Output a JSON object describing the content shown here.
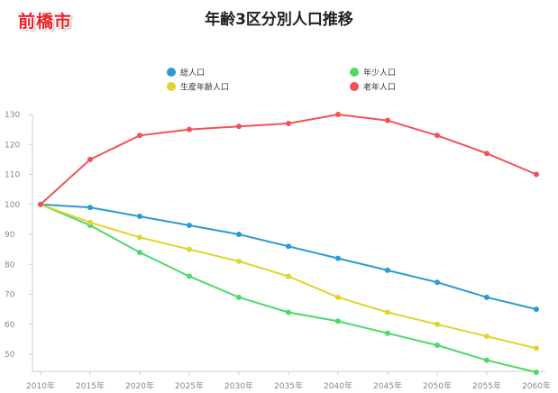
{
  "badge": "前橋市",
  "chart_data": {
    "type": "line",
    "title": "年齢3区分別人口推移",
    "xlabel": "",
    "ylabel": "",
    "categories": [
      "2010年",
      "2015年",
      "2020年",
      "2025年",
      "2030年",
      "2035年",
      "2040年",
      "2045年",
      "2050年",
      "2055年",
      "2060年"
    ],
    "ylim": [
      45,
      130
    ],
    "yticks": [
      50,
      60,
      70,
      80,
      90,
      100,
      110,
      120,
      130
    ],
    "grid": false,
    "legend_position": "top",
    "series": [
      {
        "name": "総人口",
        "color": "#2b9bd1",
        "values": [
          100,
          99,
          96,
          93,
          90,
          86,
          82,
          78,
          74,
          69,
          65
        ]
      },
      {
        "name": "年少人口",
        "color": "#4cd96a",
        "values": [
          100,
          93,
          84,
          76,
          69,
          64,
          61,
          57,
          53,
          48,
          44
        ]
      },
      {
        "name": "生産年齢人口",
        "color": "#e2d42c",
        "values": [
          100,
          94,
          89,
          85,
          81,
          76,
          69,
          64,
          60,
          56,
          52
        ]
      },
      {
        "name": "老年人口",
        "color": "#f25257",
        "values": [
          100,
          115,
          123,
          125,
          126,
          127,
          130,
          128,
          123,
          117,
          110
        ]
      }
    ]
  }
}
